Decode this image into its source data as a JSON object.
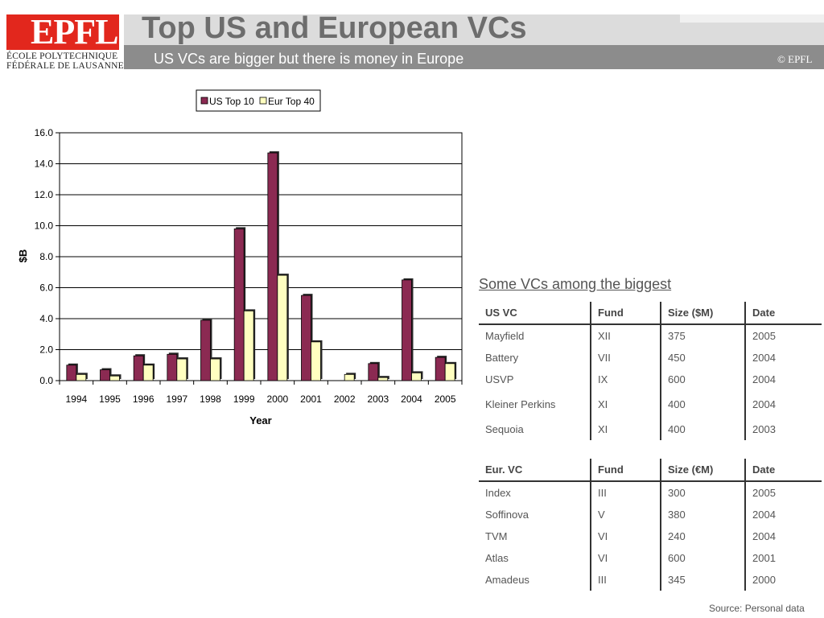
{
  "header": {
    "logo_mark": "EPFL",
    "logo_line1": "ÉCOLE POLYTECHNIQUE",
    "logo_line2": "FÉDÉRALE DE LAUSANNE",
    "title": "Top US and European VCs",
    "subtitle": "US VCs are bigger but there is money in Europe",
    "copyright": "© EPFL"
  },
  "colors": {
    "us_series": "#8b2a52",
    "eu_series": "#ffffc0",
    "logo_red": "#e2271d"
  },
  "chart_data": {
    "type": "bar",
    "categories": [
      "1994",
      "1995",
      "1996",
      "1997",
      "1998",
      "1999",
      "2000",
      "2001",
      "2002",
      "2003",
      "2004",
      "2005"
    ],
    "series": [
      {
        "name": "US Top 10",
        "values": [
          1.0,
          0.7,
          1.6,
          1.7,
          3.9,
          9.8,
          14.7,
          5.5,
          0.0,
          1.1,
          6.5,
          1.5
        ]
      },
      {
        "name": "Eur Top 40",
        "values": [
          0.4,
          0.3,
          1.0,
          1.4,
          1.4,
          4.5,
          6.8,
          2.5,
          0.4,
          0.2,
          0.5,
          1.1
        ]
      }
    ],
    "xlabel": "Year",
    "ylabel": "$B",
    "ylim": [
      0,
      16
    ],
    "yticks": [
      "0.0",
      "2.0",
      "4.0",
      "6.0",
      "8.0",
      "10.0",
      "12.0",
      "14.0",
      "16.0"
    ],
    "grid": true,
    "legend": "top"
  },
  "tables": {
    "heading": "Some VCs among the biggest",
    "us": {
      "headers": [
        "US VC",
        "Fund",
        "Size ($M)",
        "Date"
      ],
      "rows": [
        [
          "Mayfield",
          "XII",
          "375",
          "2005"
        ],
        [
          "Battery",
          "VII",
          "450",
          "2004"
        ],
        [
          "USVP",
          "IX",
          "600",
          "2004"
        ],
        [
          "Kleiner Perkins",
          "XI",
          "400",
          "2004"
        ],
        [
          "Sequoia",
          "XI",
          "400",
          "2003"
        ]
      ]
    },
    "eu": {
      "headers": [
        "Eur. VC",
        "Fund",
        "Size  (€M)",
        "Date"
      ],
      "rows": [
        [
          "Index",
          "III",
          "300",
          "2005"
        ],
        [
          "Soffinova",
          "V",
          "380",
          "2004"
        ],
        [
          "TVM",
          "VI",
          "240",
          "2004"
        ],
        [
          "Atlas",
          "VI",
          "600",
          "2001"
        ],
        [
          "Amadeus",
          "III",
          "345",
          "2000"
        ]
      ]
    }
  },
  "source": "Source: Personal data"
}
